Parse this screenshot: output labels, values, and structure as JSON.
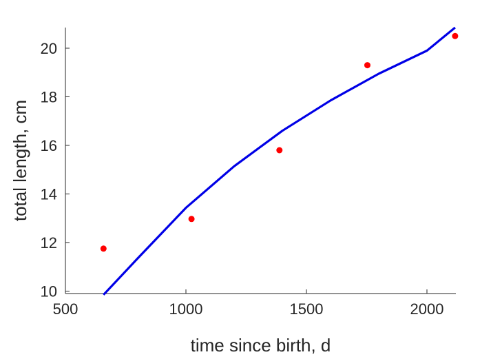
{
  "chart_data": {
    "type": "scatter",
    "title": "",
    "xlabel": "time since birth, d",
    "ylabel": "total length, cm",
    "xlim": [
      500,
      2120
    ],
    "ylim": [
      9.9,
      20.85
    ],
    "x_ticks": [
      500,
      1000,
      1500,
      2000
    ],
    "y_ticks": [
      10,
      12,
      14,
      16,
      18,
      20
    ],
    "grid": false,
    "legend": "none",
    "series": [
      {
        "kind": "points",
        "color": "#ff0000",
        "points": [
          {
            "x": 658,
            "y": 11.75
          },
          {
            "x": 1023,
            "y": 12.97
          },
          {
            "x": 1388,
            "y": 15.8
          },
          {
            "x": 1753,
            "y": 19.3
          },
          {
            "x": 2117,
            "y": 20.5
          }
        ]
      },
      {
        "kind": "line",
        "color": "#0000e6",
        "points": [
          {
            "x": 658,
            "y": 9.85
          },
          {
            "x": 800,
            "y": 11.35
          },
          {
            "x": 1000,
            "y": 13.43
          },
          {
            "x": 1200,
            "y": 15.14
          },
          {
            "x": 1400,
            "y": 16.6
          },
          {
            "x": 1600,
            "y": 17.85
          },
          {
            "x": 1800,
            "y": 18.95
          },
          {
            "x": 2000,
            "y": 19.9
          },
          {
            "x": 2117,
            "y": 20.85
          }
        ]
      }
    ]
  }
}
